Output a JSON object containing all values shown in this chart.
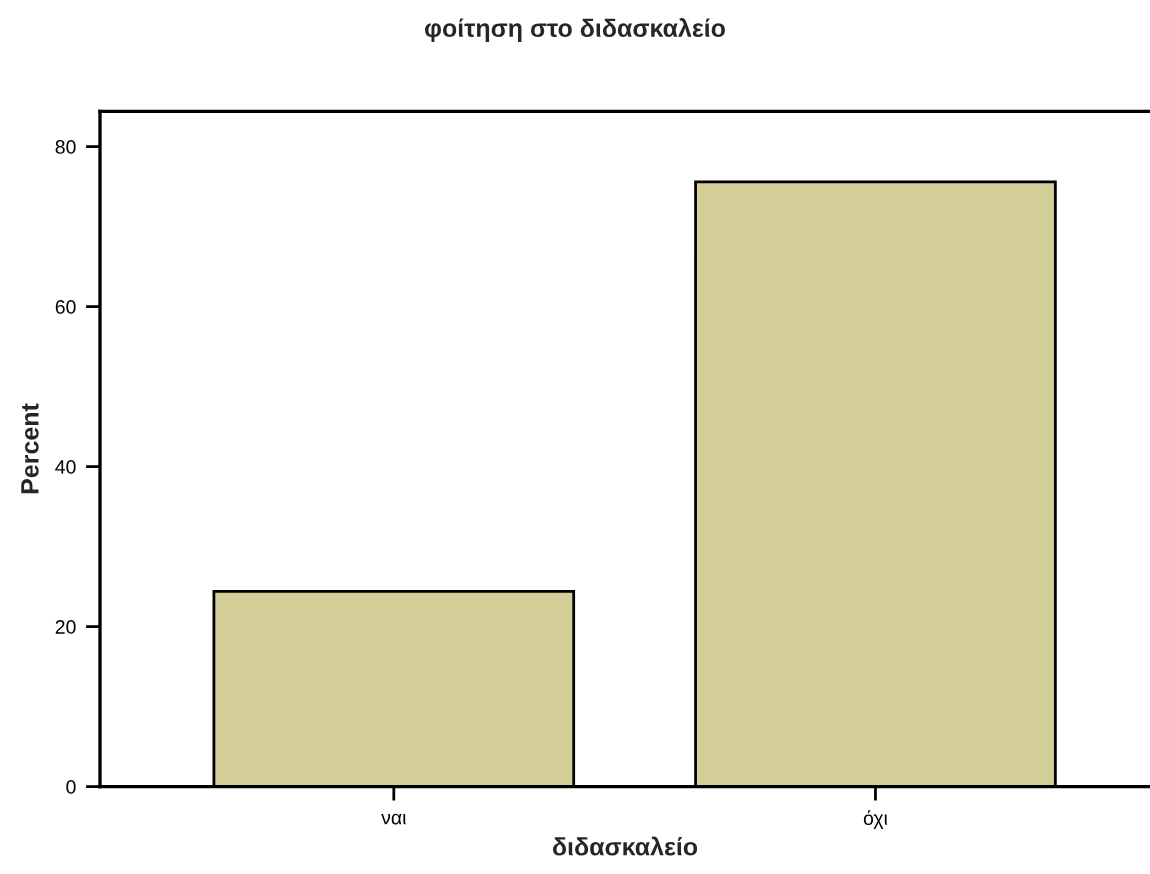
{
  "chart_data": {
    "type": "bar",
    "title": "φοίτηση στο διδασκαλείο",
    "xlabel": "διδασκαλείο",
    "ylabel": "Percent",
    "categories": [
      "ναι",
      "όχι"
    ],
    "values": [
      24.4,
      75.6
    ],
    "color": "#d3ce98",
    "ylim": [
      0,
      84.4
    ],
    "yticks": [
      0,
      20,
      40,
      60,
      80
    ],
    "grid": false
  }
}
